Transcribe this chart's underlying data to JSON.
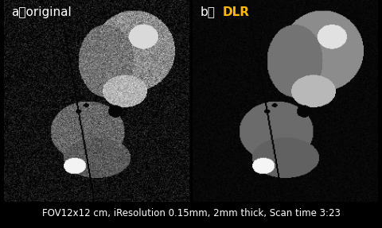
{
  "background_color": "#000000",
  "panel_a_label_white": "a：original",
  "panel_b_label_white": "b：",
  "panel_b_label_yellow": "DLR",
  "caption": "FOV12x12 cm, iResolution 0.15mm, 2mm thick, Scan time 3:23",
  "caption_color": "#ffffff",
  "caption_fontsize": 8.5,
  "label_fontsize": 11,
  "label_color_white": "#ffffff",
  "label_color_yellow": "#FFB800",
  "fig_width": 4.8,
  "fig_height": 2.87,
  "dpi": 100
}
